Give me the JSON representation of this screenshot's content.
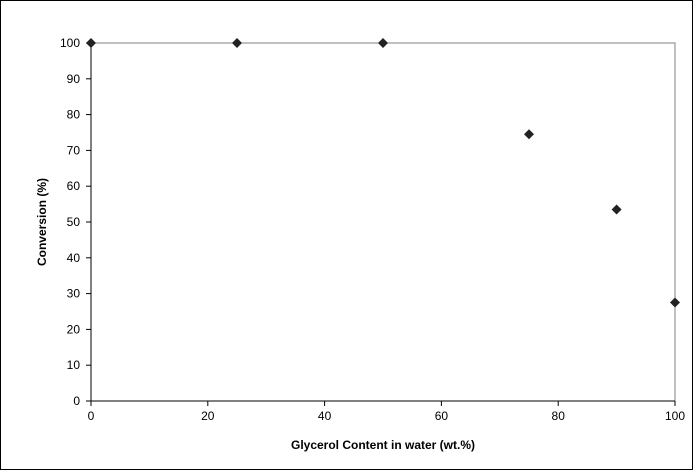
{
  "chart_data": {
    "type": "scatter",
    "title": "",
    "xlabel": "Glycerol Content  in water (wt.%)",
    "ylabel": "Conversion (%)",
    "xlim": [
      0,
      100
    ],
    "ylim": [
      0,
      100
    ],
    "xticks": [
      0,
      20,
      40,
      60,
      80,
      100
    ],
    "yticks": [
      0,
      10,
      20,
      30,
      40,
      50,
      60,
      70,
      80,
      90,
      100
    ],
    "grid": false,
    "legend": "none",
    "marker": "diamond",
    "marker_color": "#222222",
    "series": [
      {
        "x": [
          0,
          25,
          50,
          75,
          90,
          100
        ],
        "y": [
          100,
          100,
          100,
          74.5,
          53.5,
          27.5
        ]
      }
    ]
  }
}
